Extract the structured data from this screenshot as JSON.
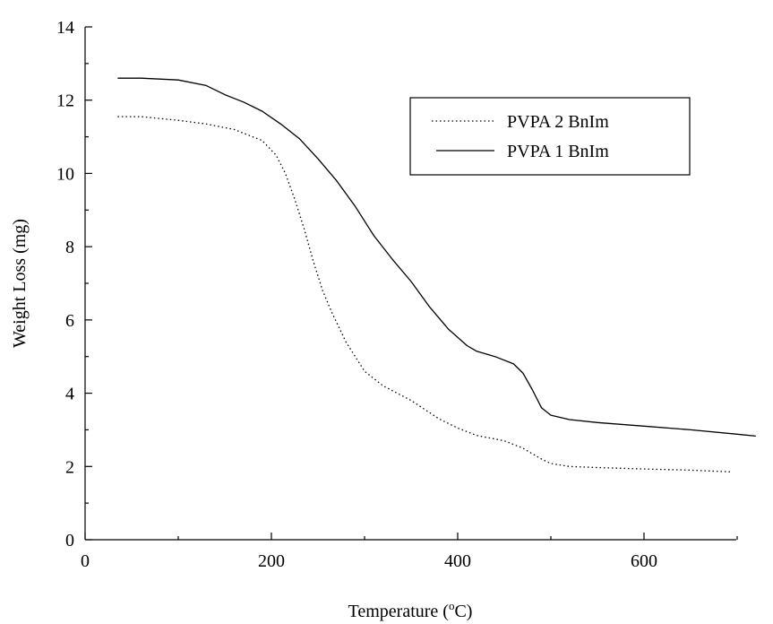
{
  "chart_data": {
    "type": "line",
    "title": "",
    "xlabel": "Temperature (",
    "xlabel_sup": "o",
    "xlabel_unit": "C)",
    "ylabel": "Weight Loss (mg)",
    "xlim": [
      0,
      720
    ],
    "ylim": [
      0,
      14
    ],
    "x_ticks": [
      0,
      200,
      400,
      600
    ],
    "y_ticks": [
      0,
      2,
      4,
      6,
      8,
      10,
      12,
      14
    ],
    "grid": false,
    "legend_position": "top-right",
    "series": [
      {
        "name": "PVPA 2 BnIm",
        "style": "dotted",
        "x": [
          35,
          60,
          100,
          130,
          160,
          190,
          205,
          215,
          225,
          235,
          245,
          255,
          265,
          280,
          300,
          320,
          350,
          380,
          400,
          420,
          450,
          470,
          480,
          490,
          500,
          520,
          550,
          600,
          650,
          695
        ],
        "y": [
          11.55,
          11.55,
          11.45,
          11.35,
          11.2,
          10.9,
          10.5,
          10.0,
          9.3,
          8.5,
          7.6,
          6.8,
          6.2,
          5.4,
          4.6,
          4.2,
          3.8,
          3.3,
          3.05,
          2.85,
          2.7,
          2.5,
          2.35,
          2.2,
          2.08,
          2.0,
          1.97,
          1.93,
          1.9,
          1.85
        ]
      },
      {
        "name": "PVPA 1 BnIm",
        "style": "solid",
        "x": [
          35,
          60,
          100,
          130,
          150,
          170,
          190,
          210,
          230,
          250,
          270,
          290,
          310,
          330,
          350,
          370,
          390,
          410,
          420,
          440,
          460,
          470,
          480,
          490,
          500,
          520,
          550,
          600,
          650,
          700,
          720
        ],
        "y": [
          12.6,
          12.6,
          12.55,
          12.4,
          12.15,
          11.95,
          11.7,
          11.35,
          10.95,
          10.4,
          9.8,
          9.1,
          8.3,
          7.65,
          7.05,
          6.35,
          5.75,
          5.3,
          5.15,
          5.0,
          4.8,
          4.55,
          4.1,
          3.6,
          3.4,
          3.28,
          3.2,
          3.1,
          3.0,
          2.88,
          2.83
        ]
      }
    ]
  }
}
